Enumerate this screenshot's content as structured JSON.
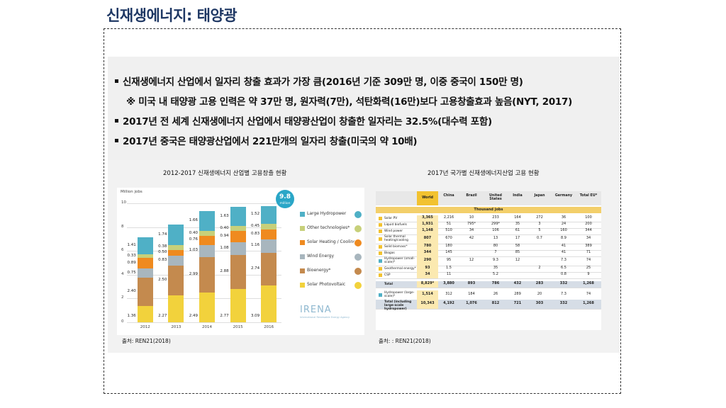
{
  "title": "신재생에너지: 태양광",
  "bullets": [
    "신재생에너지 산업에서 일자리 창출 효과가 가장 큼(2016년 기준 309만 명, 이중 중국이 150만 명)",
    "※ 미국 내 태양광 고용 인력은 약 37만 명, 원자력(7만), 석탄화력(16만)보다 고용창출효과 높음(NYT, 2017)",
    "2017년 전 세계 신재생에너지 산업에서 태양광산업이 창출한 일자리는 32.5%(대수력 포함)",
    "2017년 중국은 태양광산업에서 221만개의 일자리 창출(미국의 약 10배)"
  ],
  "left": {
    "title": "2012-2017 신재생에너지 산업별 고용창출 현황",
    "source": "출처: REN21(2018)",
    "badge_value": "9.8",
    "badge_unit": "million",
    "watermark": "IRENA",
    "watermark_sub": "International Renewable Energy Agency"
  },
  "right": {
    "title": "2017년 국가별 신재생에너지산업 고용 현황",
    "source": "출처: : REN21(2018)",
    "columns": [
      "World",
      "China",
      "Brazil",
      "United States",
      "India",
      "Japan",
      "Germany",
      "Total EU*"
    ],
    "unit_row": "Thousand jobs",
    "rows": [
      [
        "Solar PV",
        "3,365",
        "2,216",
        "10",
        "233",
        "164",
        "272",
        "36",
        "100"
      ],
      [
        "Liquid biofuels",
        "1,931",
        "51",
        "795*",
        "299*",
        "35",
        "3",
        "24",
        "200"
      ],
      [
        "Wind power",
        "1,148",
        "510",
        "34",
        "106",
        "61",
        "5",
        "160",
        "344"
      ],
      [
        "Solar thermal heating/cooling",
        "807",
        "670",
        "42",
        "13",
        "17",
        "0.7",
        "8.9",
        "34"
      ],
      [
        "Solid biomass*",
        "780",
        "180",
        "",
        "80",
        "58",
        "",
        "41",
        "389"
      ],
      [
        "Biogas",
        "344",
        "145",
        "",
        "7",
        "85",
        "",
        "41",
        "71"
      ],
      [
        "Hydropower (small-scale)*",
        "290",
        "95",
        "12",
        "9.3",
        "12",
        "",
        "7.3",
        "74"
      ],
      [
        "Geothermal energy*",
        "93",
        "1.5",
        "",
        "35",
        "",
        "2",
        "6.5",
        "25"
      ],
      [
        "CSP",
        "34",
        "11",
        "",
        "5.2",
        "",
        "",
        "0.8",
        "9"
      ],
      [
        "Total",
        "8,829*",
        "3,880",
        "893",
        "786",
        "432",
        "283",
        "332",
        "1,268"
      ],
      [
        "Hydropower (large-scale)*",
        "1,514",
        "312",
        "184",
        "26",
        "289",
        "20",
        "7.3",
        "74"
      ],
      [
        "Total (including large-scale hydropower)",
        "10,343",
        "4,192",
        "1,076",
        "812",
        "721",
        "303",
        "332",
        "1,268"
      ]
    ]
  },
  "chart_data": {
    "type": "bar",
    "title": "",
    "ylabel": "Million jobs",
    "ylim": [
      0,
      10
    ],
    "yticks": [
      "0",
      "2",
      "4",
      "6",
      "8",
      "10"
    ],
    "categories": [
      "2012",
      "2013",
      "2014",
      "2015",
      "2016"
    ],
    "series": [
      {
        "name": "Solar Photovoltaic",
        "color": "#f2d23c",
        "values": [
          1.36,
          2.27,
          2.49,
          2.77,
          3.09
        ]
      },
      {
        "name": "Bioenergy*",
        "color": "#c48a4e",
        "values": [
          2.4,
          2.5,
          2.99,
          2.88,
          2.74
        ]
      },
      {
        "name": "Wind Energy",
        "color": "#a8b6be",
        "values": [
          0.75,
          0.83,
          1.03,
          1.08,
          1.16
        ]
      },
      {
        "name": "Solar Heating / Cooling",
        "color": "#ef8a1f",
        "values": [
          0.89,
          0.5,
          0.76,
          0.94,
          0.83
        ]
      },
      {
        "name": "Other technologies*",
        "color": "#c7d07a",
        "values": [
          0.33,
          0.38,
          0.4,
          0.4,
          0.45
        ]
      },
      {
        "name": "Large Hydropower",
        "color": "#4fb0c6",
        "values": [
          1.41,
          1.74,
          1.66,
          1.63,
          1.52
        ]
      }
    ],
    "value_labels": [
      [
        "1.36",
        "2.40",
        "0.75",
        "0.89",
        "0.33",
        "1.41"
      ],
      [
        "2.27",
        "2.50",
        "0.83",
        "0.50",
        "0.38",
        "1.74"
      ],
      [
        "2.49",
        "2.99",
        "1.03",
        "0.76",
        "0.40",
        "1.66"
      ],
      [
        "2.77",
        "2.88",
        "1.08",
        "0.94",
        "0.40",
        "1.63"
      ],
      [
        "3.09",
        "2.74",
        "1.16",
        "0.83",
        "0.45",
        "1.52"
      ]
    ]
  }
}
